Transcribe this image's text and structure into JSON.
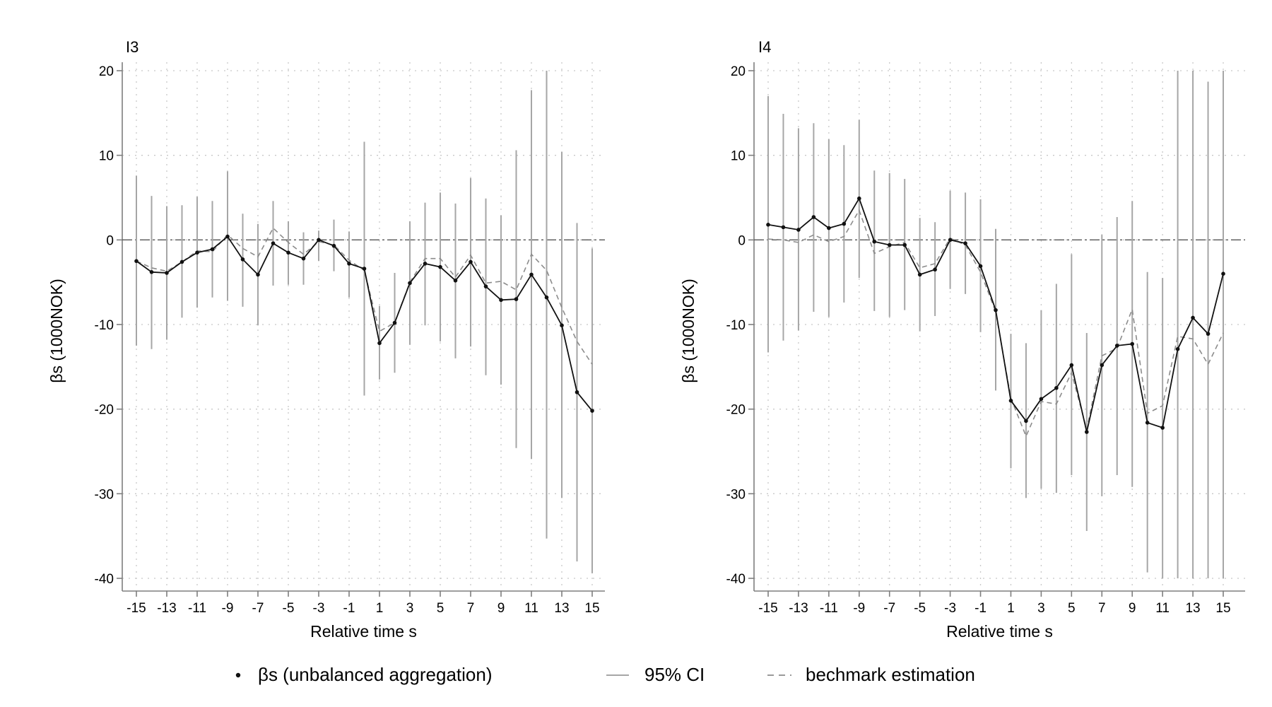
{
  "chart_data": [
    {
      "type": "line",
      "title": "I3",
      "xlabel": "Relative time s",
      "ylabel": "βs (1000NOK)",
      "xlim": [
        -15,
        15
      ],
      "ylim": [
        -40,
        20
      ],
      "xticks": [
        -15,
        -13,
        -11,
        -9,
        -7,
        -5,
        -3,
        -1,
        1,
        3,
        5,
        7,
        9,
        11,
        13,
        15
      ],
      "yticks": [
        20,
        10,
        0,
        -10,
        -20,
        -30,
        -40
      ],
      "grid": true,
      "zero_line": true,
      "x": [
        -15,
        -14,
        -13,
        -12,
        -11,
        -10,
        -9,
        -8,
        -7,
        -6,
        -5,
        -4,
        -3,
        -2,
        -1,
        0,
        1,
        2,
        3,
        4,
        5,
        6,
        7,
        8,
        9,
        10,
        11,
        12,
        13,
        14,
        15
      ],
      "series": [
        {
          "name": "βs (unbalanced aggregation)",
          "style": "solid-markers",
          "values": [
            -2.5,
            -3.8,
            -3.9,
            -2.6,
            -1.5,
            -1.1,
            0.4,
            -2.3,
            -4.1,
            -0.4,
            -1.5,
            -2.2,
            0.0,
            -0.7,
            -2.8,
            -3.4,
            -12.2,
            -9.8,
            -5.1,
            -2.8,
            -3.2,
            -4.8,
            -2.6,
            -5.5,
            -7.1,
            -7.0,
            -4.1,
            -6.8,
            -10.1,
            -18.0,
            -20.2
          ]
        },
        {
          "name": "bechmark estimation",
          "style": "dashed",
          "values": [
            -2.5,
            -3.3,
            -3.7,
            -2.6,
            -1.3,
            -1.4,
            0.6,
            -1.0,
            -2.0,
            1.4,
            -0.3,
            -1.7,
            -0.2,
            -0.6,
            -2.4,
            -3.6,
            -10.8,
            -9.8,
            -5.0,
            -2.2,
            -2.2,
            -4.4,
            -1.8,
            -5.1,
            -4.9,
            -5.9,
            -1.7,
            -3.6,
            -8.0,
            -12.0,
            -14.7
          ]
        },
        {
          "name": "95% CI lower",
          "style": "ci",
          "values": [
            -12.5,
            -12.9,
            -11.8,
            -9.2,
            -8.0,
            -6.8,
            -7.2,
            -7.9,
            -10.1,
            -5.4,
            -5.3,
            -5.3,
            -2.5,
            -3.7,
            -6.8,
            -18.4,
            -16.5,
            -15.7,
            -12.4,
            -10.1,
            -12.0,
            -14.0,
            -12.6,
            -16.0,
            -17.1,
            -24.6,
            -25.9,
            -35.3,
            -30.5,
            -38.0,
            -39.4
          ]
        },
        {
          "name": "95% CI upper",
          "style": "ci",
          "values": [
            7.6,
            5.2,
            4.0,
            4.1,
            5.1,
            4.6,
            8.1,
            3.1,
            1.9,
            4.6,
            2.2,
            0.9,
            1.1,
            2.4,
            1.0,
            11.6,
            -7.8,
            -3.9,
            2.2,
            4.4,
            5.6,
            4.3,
            7.3,
            4.9,
            2.9,
            10.6,
            17.7,
            20.0,
            10.4,
            2.0,
            -1.0
          ]
        }
      ]
    },
    {
      "type": "line",
      "title": "I4",
      "xlabel": "Relative time s",
      "ylabel": "βs (1000NOK)",
      "xlim": [
        -15,
        15
      ],
      "ylim": [
        -40,
        20
      ],
      "xticks": [
        -15,
        -13,
        -11,
        -9,
        -7,
        -5,
        -3,
        -1,
        1,
        3,
        5,
        7,
        9,
        11,
        13,
        15
      ],
      "yticks": [
        20,
        10,
        0,
        -10,
        -20,
        -30,
        -40
      ],
      "grid": true,
      "zero_line": true,
      "x": [
        -15,
        -14,
        -13,
        -12,
        -11,
        -10,
        -9,
        -8,
        -7,
        -6,
        -5,
        -4,
        -3,
        -2,
        -1,
        0,
        1,
        2,
        3,
        4,
        5,
        6,
        7,
        8,
        9,
        10,
        11,
        12,
        13,
        14,
        15
      ],
      "series": [
        {
          "name": "βs (unbalanced aggregation)",
          "style": "solid-markers",
          "values": [
            1.8,
            1.5,
            1.2,
            2.7,
            1.4,
            1.9,
            4.9,
            -0.2,
            -0.6,
            -0.6,
            -4.1,
            -3.5,
            0.0,
            -0.4,
            -3.1,
            -8.3,
            -19.0,
            -21.4,
            -18.8,
            -17.5,
            -14.8,
            -22.7,
            -14.8,
            -12.5,
            -12.3,
            -21.6,
            -22.2,
            -12.9,
            -9.2,
            -11.1,
            -4.0
          ]
        },
        {
          "name": "bechmark estimation",
          "style": "dashed",
          "values": [
            0.1,
            0.0,
            -0.3,
            0.6,
            -0.2,
            0.4,
            3.5,
            -1.6,
            -0.8,
            -0.3,
            -3.3,
            -2.8,
            0.2,
            -0.6,
            -3.8,
            -8.5,
            -18.7,
            -23.2,
            -19.1,
            -19.4,
            -15.7,
            -22.4,
            -13.7,
            -12.8,
            -8.2,
            -20.5,
            -19.6,
            -11.4,
            -11.7,
            -14.7,
            -11.0
          ]
        },
        {
          "name": "95% CI lower",
          "style": "ci",
          "values": [
            -13.3,
            -11.9,
            -10.7,
            -8.5,
            -9.1,
            -7.4,
            -4.5,
            -8.4,
            -9.1,
            -8.3,
            -10.8,
            -9.0,
            -5.8,
            -6.4,
            -10.9,
            -17.8,
            -27.0,
            -30.5,
            -29.4,
            -29.9,
            -27.8,
            -34.4,
            -30.3,
            -27.8,
            -29.2,
            -39.3,
            -40.0,
            -40.0,
            -40.0,
            -40.0,
            -40.0
          ]
        },
        {
          "name": "95% CI upper",
          "style": "ci",
          "values": [
            17.0,
            14.9,
            13.2,
            13.8,
            11.9,
            11.2,
            14.2,
            8.2,
            7.9,
            7.2,
            2.6,
            2.1,
            5.8,
            5.6,
            4.8,
            1.3,
            -11.1,
            -12.2,
            -8.3,
            -5.2,
            -1.7,
            -11.0,
            0.6,
            2.7,
            4.6,
            -3.8,
            -4.5,
            20.0,
            20.0,
            18.7,
            20.0
          ]
        }
      ]
    }
  ],
  "legend": {
    "position": "bottom",
    "items": [
      {
        "label": "βs (unbalanced aggregation)",
        "style": "marker"
      },
      {
        "label": "95% CI",
        "style": "ci"
      },
      {
        "label": "bechmark estimation",
        "style": "dashed"
      }
    ]
  },
  "colors": {
    "estimate": "#111111",
    "benchmark": "#8c8c8c",
    "ci": "#a6a6a6",
    "grid": "#c8c8c8",
    "axis": "#7f7f7f",
    "zero": "#555555"
  }
}
